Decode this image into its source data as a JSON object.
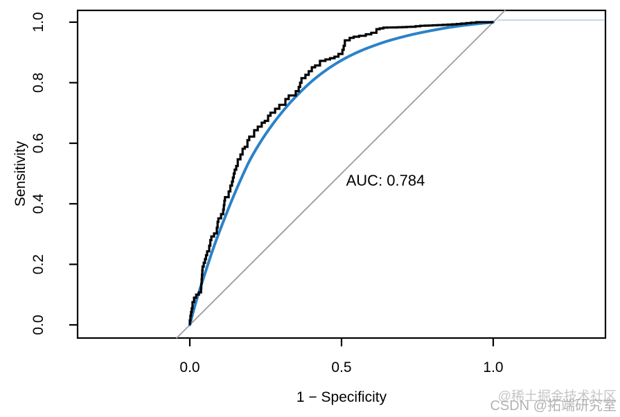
{
  "chart_data": {
    "type": "line",
    "title": "",
    "xlabel": "1 − Specificity",
    "ylabel": "Sensitivity",
    "x_ticks": {
      "labels": [
        "0.0",
        "0.5",
        "1.0"
      ],
      "values": [
        0.0,
        0.5,
        1.0
      ]
    },
    "y_ticks": {
      "labels": [
        "0.0",
        "0.2",
        "0.4",
        "0.6",
        "0.8",
        "1.0"
      ],
      "values": [
        0.0,
        0.2,
        0.4,
        0.6,
        0.8,
        1.0
      ]
    },
    "x_data_range": [
      0,
      1
    ],
    "y_data_range": [
      0,
      1
    ],
    "grid": false,
    "legend": "none",
    "annotation": {
      "text": "AUC: 0.784",
      "auc_value": 0.784,
      "x": 0.645,
      "y": 0.478
    },
    "series": [
      {
        "name": "empirical-roc",
        "style": "step",
        "color": "#000000",
        "points": [
          [
            0,
            0
          ],
          [
            0.004,
            0.03
          ],
          [
            0.009,
            0.055
          ],
          [
            0.014,
            0.075
          ],
          [
            0.021,
            0.09
          ],
          [
            0.03,
            0.1
          ],
          [
            0.037,
            0.107
          ],
          [
            0.042,
            0.18
          ],
          [
            0.05,
            0.205
          ],
          [
            0.057,
            0.23
          ],
          [
            0.064,
            0.243
          ],
          [
            0.071,
            0.28
          ],
          [
            0.08,
            0.292
          ],
          [
            0.089,
            0.302
          ],
          [
            0.094,
            0.34
          ],
          [
            0.103,
            0.352
          ],
          [
            0.11,
            0.366
          ],
          [
            0.116,
            0.41
          ],
          [
            0.128,
            0.422
          ],
          [
            0.139,
            0.46
          ],
          [
            0.148,
            0.5
          ],
          [
            0.158,
            0.525
          ],
          [
            0.167,
            0.547
          ],
          [
            0.174,
            0.563
          ],
          [
            0.181,
            0.582
          ],
          [
            0.19,
            0.588
          ],
          [
            0.196,
            0.61
          ],
          [
            0.212,
            0.622
          ],
          [
            0.224,
            0.643
          ],
          [
            0.237,
            0.655
          ],
          [
            0.247,
            0.668
          ],
          [
            0.258,
            0.674
          ],
          [
            0.266,
            0.691
          ],
          [
            0.281,
            0.701
          ],
          [
            0.295,
            0.714
          ],
          [
            0.315,
            0.727
          ],
          [
            0.326,
            0.746
          ],
          [
            0.349,
            0.758
          ],
          [
            0.359,
            0.772
          ],
          [
            0.368,
            0.8
          ],
          [
            0.381,
            0.815
          ],
          [
            0.392,
            0.826
          ],
          [
            0.402,
            0.838
          ],
          [
            0.413,
            0.851
          ],
          [
            0.429,
            0.857
          ],
          [
            0.447,
            0.872
          ],
          [
            0.462,
            0.877
          ],
          [
            0.477,
            0.881
          ],
          [
            0.49,
            0.886
          ],
          [
            0.503,
            0.895
          ],
          [
            0.511,
            0.922
          ],
          [
            0.527,
            0.94
          ],
          [
            0.54,
            0.948
          ],
          [
            0.558,
            0.952
          ],
          [
            0.58,
            0.955
          ],
          [
            0.598,
            0.96
          ],
          [
            0.615,
            0.965
          ],
          [
            0.626,
            0.977
          ],
          [
            0.65,
            0.982
          ],
          [
            0.7,
            0.983
          ],
          [
            0.744,
            0.985
          ],
          [
            0.775,
            0.988
          ],
          [
            0.8,
            0.989
          ],
          [
            0.85,
            0.991
          ],
          [
            0.895,
            0.994
          ],
          [
            0.927,
            0.997
          ],
          [
            0.962,
            1.0
          ],
          [
            1.0,
            1.0
          ]
        ]
      },
      {
        "name": "smooth-roc",
        "style": "smooth",
        "color": "#2b82c9",
        "points": [
          [
            0,
            0
          ],
          [
            0.02,
            0.075
          ],
          [
            0.05,
            0.17
          ],
          [
            0.08,
            0.26
          ],
          [
            0.11,
            0.34
          ],
          [
            0.14,
            0.415
          ],
          [
            0.17,
            0.485
          ],
          [
            0.2,
            0.548
          ],
          [
            0.24,
            0.615
          ],
          [
            0.28,
            0.672
          ],
          [
            0.32,
            0.722
          ],
          [
            0.36,
            0.765
          ],
          [
            0.4,
            0.803
          ],
          [
            0.44,
            0.835
          ],
          [
            0.48,
            0.862
          ],
          [
            0.52,
            0.885
          ],
          [
            0.56,
            0.904
          ],
          [
            0.6,
            0.92
          ],
          [
            0.65,
            0.937
          ],
          [
            0.7,
            0.951
          ],
          [
            0.75,
            0.963
          ],
          [
            0.8,
            0.973
          ],
          [
            0.85,
            0.982
          ],
          [
            0.9,
            0.989
          ],
          [
            0.95,
            0.995
          ],
          [
            1.0,
            1.0
          ]
        ]
      },
      {
        "name": "chance-diagonal",
        "style": "line",
        "color": "#9b9b9b",
        "points": [
          [
            -0.044,
            -0.044
          ],
          [
            1.04,
            1.04
          ]
        ]
      }
    ]
  },
  "colors": {
    "axis": "#000000",
    "tick_text": "#000000",
    "auc_text": "#000000",
    "smooth_curve": "#2b82c9",
    "smooth_extension": "#c3daee",
    "diagonal": "#9b9b9b",
    "watermark_top": "#c6c6c6",
    "watermark_bottom": "#b2b2b2",
    "background": "#ffffff"
  },
  "watermark": {
    "line1": "@稀土掘金技术社区",
    "line2": "CSDN @拓端研究室"
  }
}
